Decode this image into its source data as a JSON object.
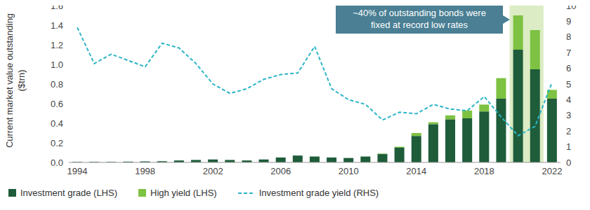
{
  "chart_data": {
    "type": "bar",
    "x": [
      1994,
      1995,
      1996,
      1997,
      1998,
      1999,
      2000,
      2001,
      2002,
      2003,
      2004,
      2005,
      2006,
      2007,
      2008,
      2009,
      2010,
      2011,
      2012,
      2013,
      2014,
      2015,
      2016,
      2017,
      2018,
      2019,
      2020,
      2021,
      2022
    ],
    "xlim": [
      1993.5,
      2022.5
    ],
    "xticks": [
      1994,
      1998,
      2002,
      2006,
      2010,
      2014,
      2018,
      2022
    ],
    "ylim": [
      0,
      1.6
    ],
    "yticks": [
      {
        "value": 0,
        "label": "0.0"
      },
      0.2,
      0.4,
      0.6,
      0.8,
      {
        "value": 1,
        "label": "1.0"
      },
      1.2,
      1.4,
      1.6
    ],
    "y2lim": [
      0,
      10
    ],
    "y2ticks": [
      0,
      1,
      2,
      3,
      4,
      5,
      6,
      7,
      8,
      9,
      10
    ],
    "ylabel": "Current market value outstanding ($trn)",
    "stacked": true,
    "grid": false,
    "legend": "bottom",
    "series": [
      {
        "name": "Investment grade (LHS)",
        "type": "bar",
        "color": "#1e5c3a",
        "values": [
          0.005,
          0.005,
          0.005,
          0.008,
          0.01,
          0.012,
          0.02,
          0.025,
          0.03,
          0.025,
          0.02,
          0.03,
          0.05,
          0.07,
          0.06,
          0.05,
          0.045,
          0.06,
          0.085,
          0.15,
          0.27,
          0.39,
          0.44,
          0.45,
          0.52,
          0.65,
          1.15,
          0.95,
          0.65
        ]
      },
      {
        "name": "High yield (LHS)",
        "type": "bar",
        "color": "#7dc242",
        "values": [
          0,
          0,
          0,
          0,
          0,
          0,
          0,
          0,
          0,
          0,
          0,
          0,
          0,
          0,
          0,
          0,
          0,
          0,
          0.005,
          0.01,
          0.03,
          0.02,
          0.04,
          0.08,
          0.07,
          0.21,
          0.35,
          0.4,
          0.09
        ]
      },
      {
        "name": "Investment grade yield (RHS)",
        "type": "line",
        "axis": "y2",
        "line_style": "dashed",
        "color": "#2bb5c7",
        "values": [
          8.6,
          6.3,
          6.9,
          6.5,
          6.1,
          7.6,
          7.3,
          6.3,
          5.0,
          4.4,
          4.7,
          5.3,
          5.6,
          5.7,
          7.4,
          4.7,
          4.0,
          3.7,
          2.7,
          3.2,
          3.1,
          3.7,
          3.4,
          3.3,
          4.2,
          2.9,
          1.7,
          2.3,
          5.1
        ]
      }
    ],
    "annotation": {
      "text": "~40% of outstanding bonds were fixed at record low rates",
      "highlight": [
        2020,
        2021
      ]
    }
  }
}
